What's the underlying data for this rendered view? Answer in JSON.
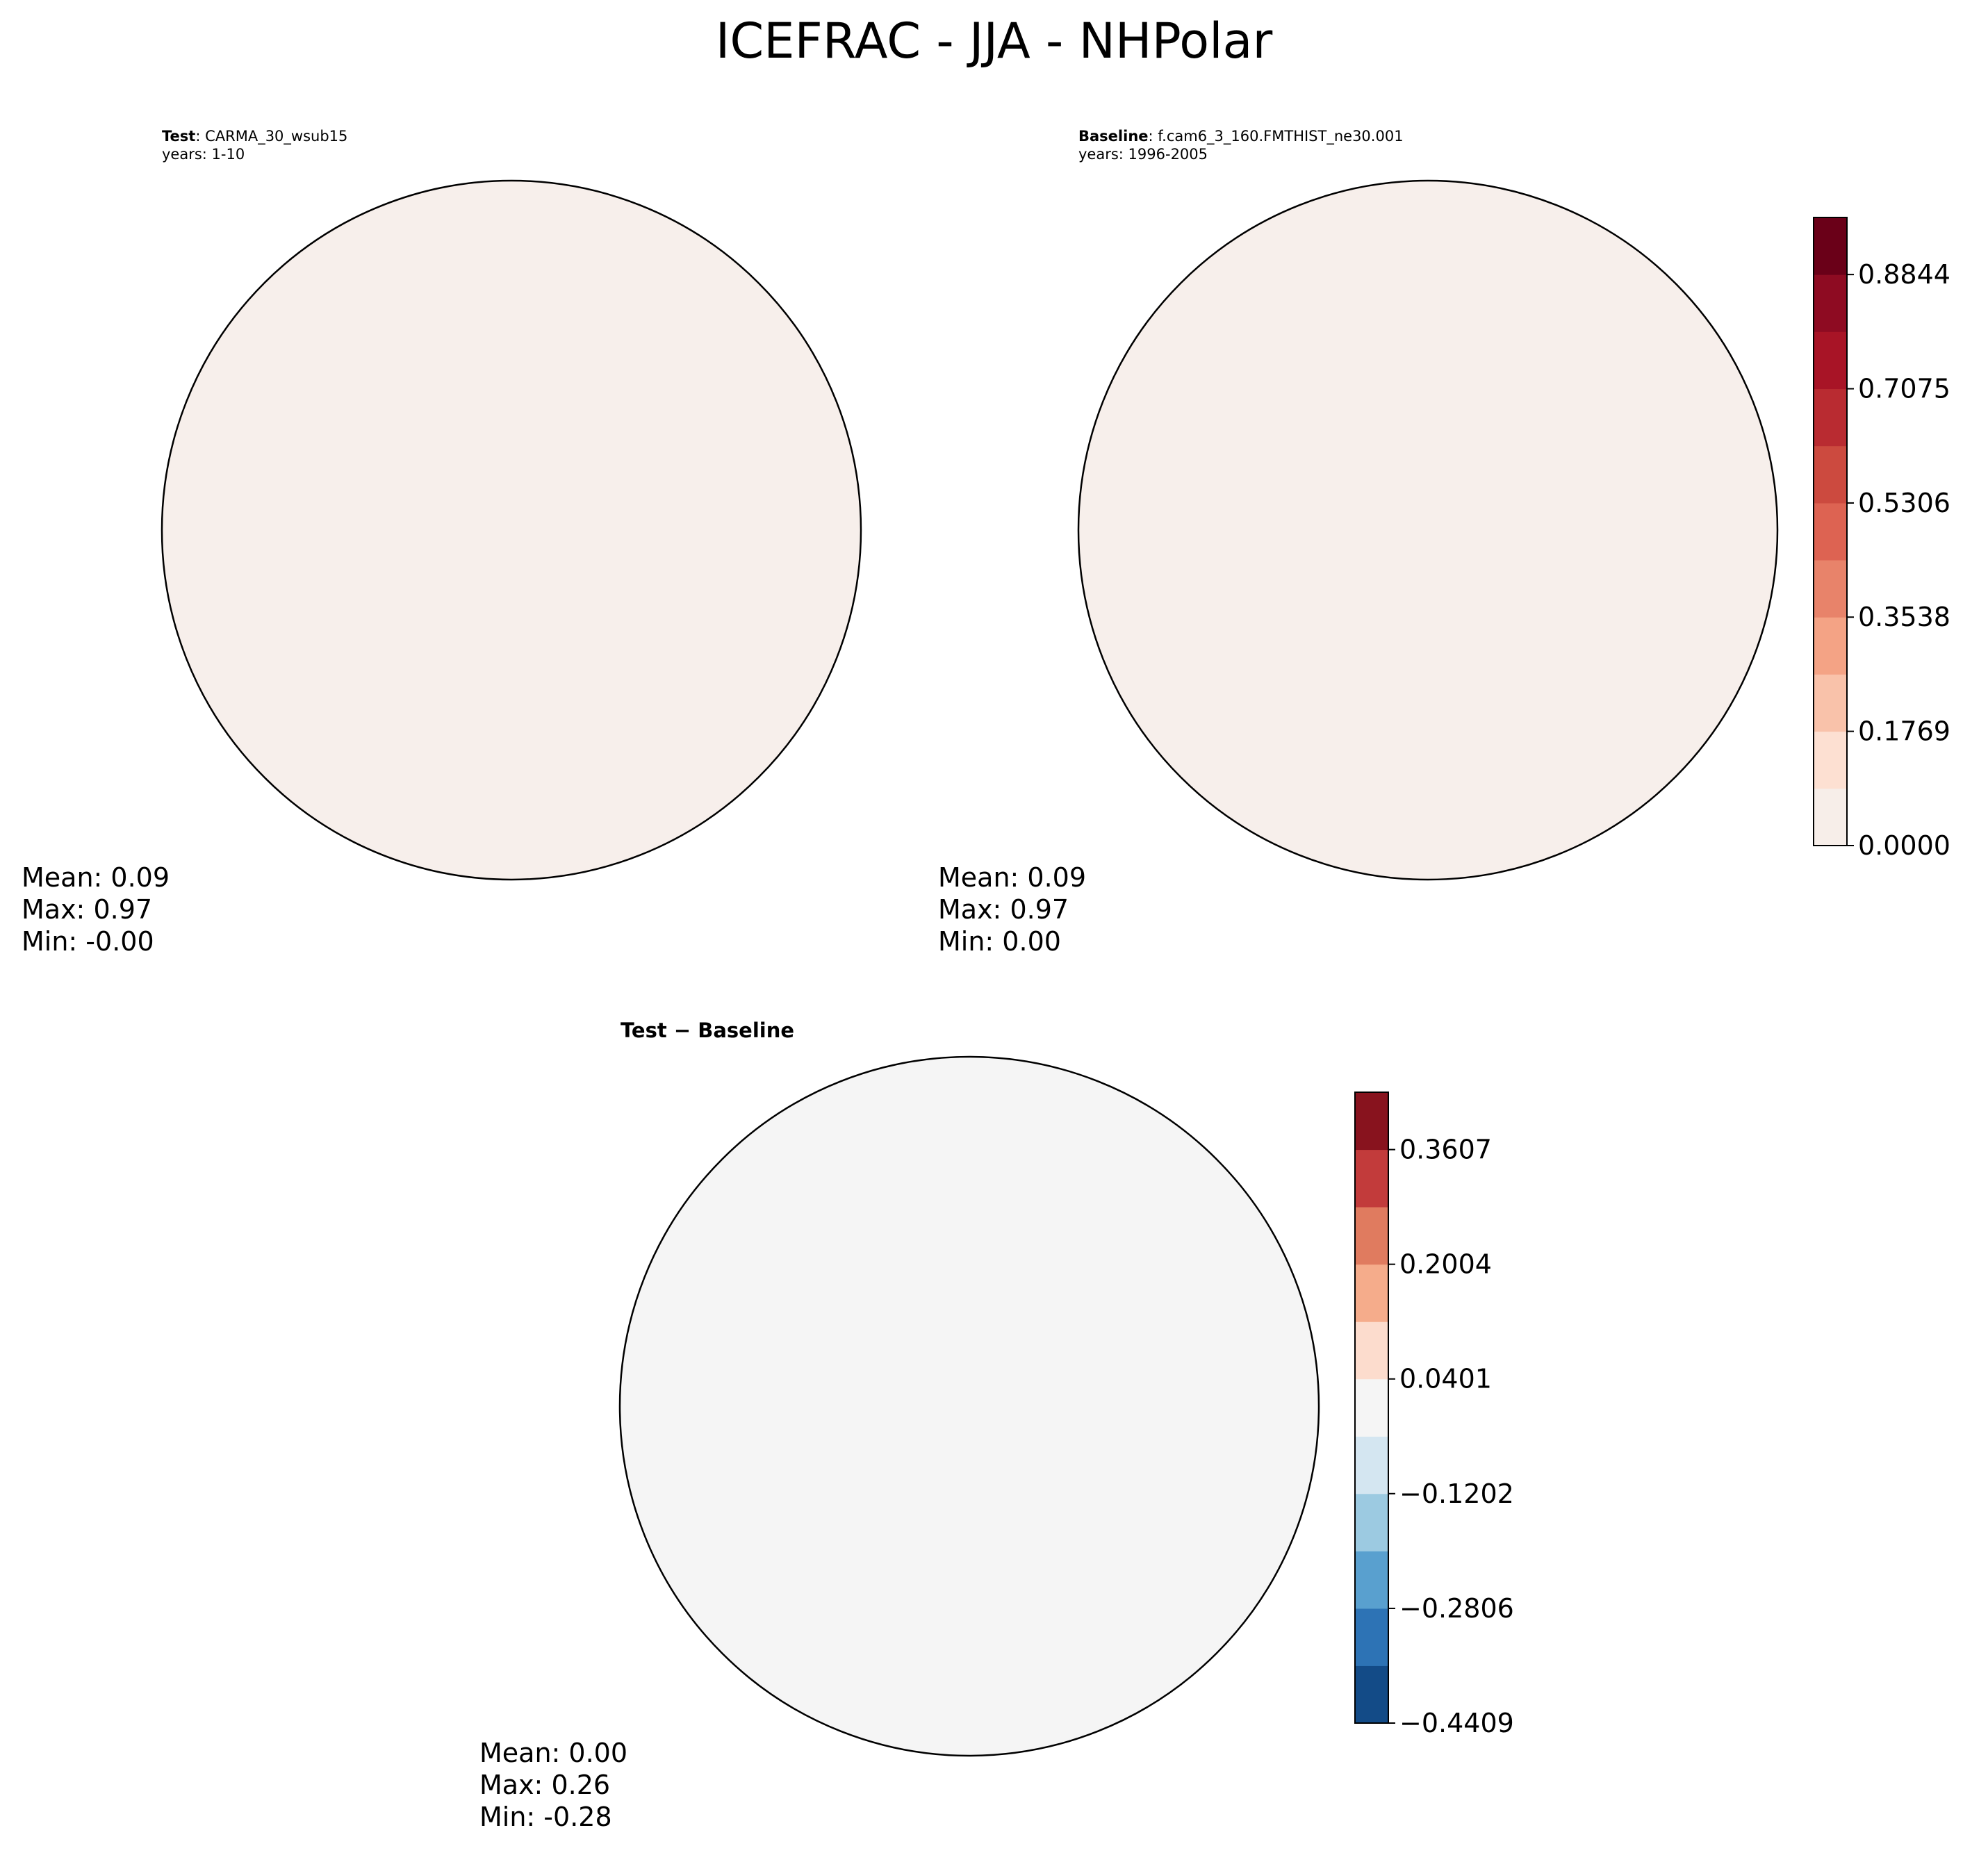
{
  "figure": {
    "title": "ICEFRAC - JJA - NHPolar"
  },
  "panels": {
    "test": {
      "label_bold": "Test",
      "label_sep": ": ",
      "case_name": "CARMA_30_wsub15",
      "years": "years: 1-10",
      "stats": {
        "mean": "Mean:  0.09",
        "max": "Max:  0.97",
        "min": "Min: -0.00"
      }
    },
    "baseline": {
      "label_bold": "Baseline",
      "label_sep": ": ",
      "case_name": "f.cam6_3_160.FMTHIST_ne30.001",
      "years": "years: 1996-2005",
      "stats": {
        "mean": "Mean:  0.09",
        "max": "Max:  0.97",
        "min": "Min:  0.00"
      }
    },
    "diff": {
      "title": "Test − Baseline",
      "stats": {
        "mean": "Mean:  0.00",
        "max": "Max:  0.26",
        "min": "Min: -0.28"
      }
    }
  },
  "chart_data": [
    {
      "type": "heatmap",
      "projection": "north-polar-stereographic",
      "title": "Test: CARMA_30_wsub15",
      "variable": "ICEFRAC",
      "season": "JJA",
      "colormap": "Reds",
      "colorbar_shared": true,
      "summary": {
        "mean": 0.09,
        "max": 0.97,
        "min": -0.0
      }
    },
    {
      "type": "heatmap",
      "projection": "north-polar-stereographic",
      "title": "Baseline: f.cam6_3_160.FMTHIST_ne30.001",
      "variable": "ICEFRAC",
      "season": "JJA",
      "colormap": "Reds",
      "summary": {
        "mean": 0.09,
        "max": 0.97,
        "min": 0.0
      },
      "colorbar": {
        "range": [
          0.0,
          0.9728
        ],
        "levels": [
          0.0,
          0.0885,
          0.1769,
          0.2654,
          0.3538,
          0.4423,
          0.5306,
          0.6191,
          0.7075,
          0.796,
          0.8844,
          0.9728
        ],
        "tick_labels": [
          "0.0000",
          "0.1769",
          "0.3538",
          "0.5306",
          "0.7075",
          "0.8844"
        ],
        "tick_values": [
          0.0,
          0.1769,
          0.3538,
          0.5306,
          0.7075,
          0.8844
        ],
        "colors": [
          "#f7eee9",
          "#fde0d2",
          "#f9c2aa",
          "#f4a385",
          "#e8836a",
          "#dd6352",
          "#cc4a3f",
          "#b92b31",
          "#a81426",
          "#8e0b22",
          "#6a0018"
        ]
      }
    },
    {
      "type": "heatmap",
      "projection": "north-polar-stereographic",
      "title": "Test − Baseline",
      "variable": "ICEFRAC",
      "season": "JJA",
      "colormap": "RdBu_r",
      "summary": {
        "mean": 0.0,
        "max": 0.26,
        "min": -0.28
      },
      "colorbar": {
        "range": [
          -0.4409,
          0.4409
        ],
        "levels": [
          -0.4409,
          -0.3607,
          -0.2806,
          -0.2004,
          -0.1202,
          -0.0401,
          0.0401,
          0.1202,
          0.2004,
          0.2806,
          0.3607,
          0.4409
        ],
        "tick_labels": [
          "−0.4409",
          "−0.2806",
          "−0.1202",
          "0.0401",
          "0.2004",
          "0.3607"
        ],
        "tick_values": [
          -0.4409,
          -0.2806,
          -0.1202,
          0.0401,
          0.2004,
          0.3607
        ],
        "colors": [
          "#134b87",
          "#2d73b5",
          "#59a0cf",
          "#9ccae1",
          "#d4e6f1",
          "#f5f5f5",
          "#fcdccd",
          "#f5ac8b",
          "#e07b5f",
          "#c23b3b",
          "#88131e"
        ]
      }
    }
  ],
  "colors": {
    "ocean_test": "#f7efeb",
    "ocean_diff": "#f5f5f5",
    "ice_core": "#6a0018",
    "coastline": "#000000"
  }
}
